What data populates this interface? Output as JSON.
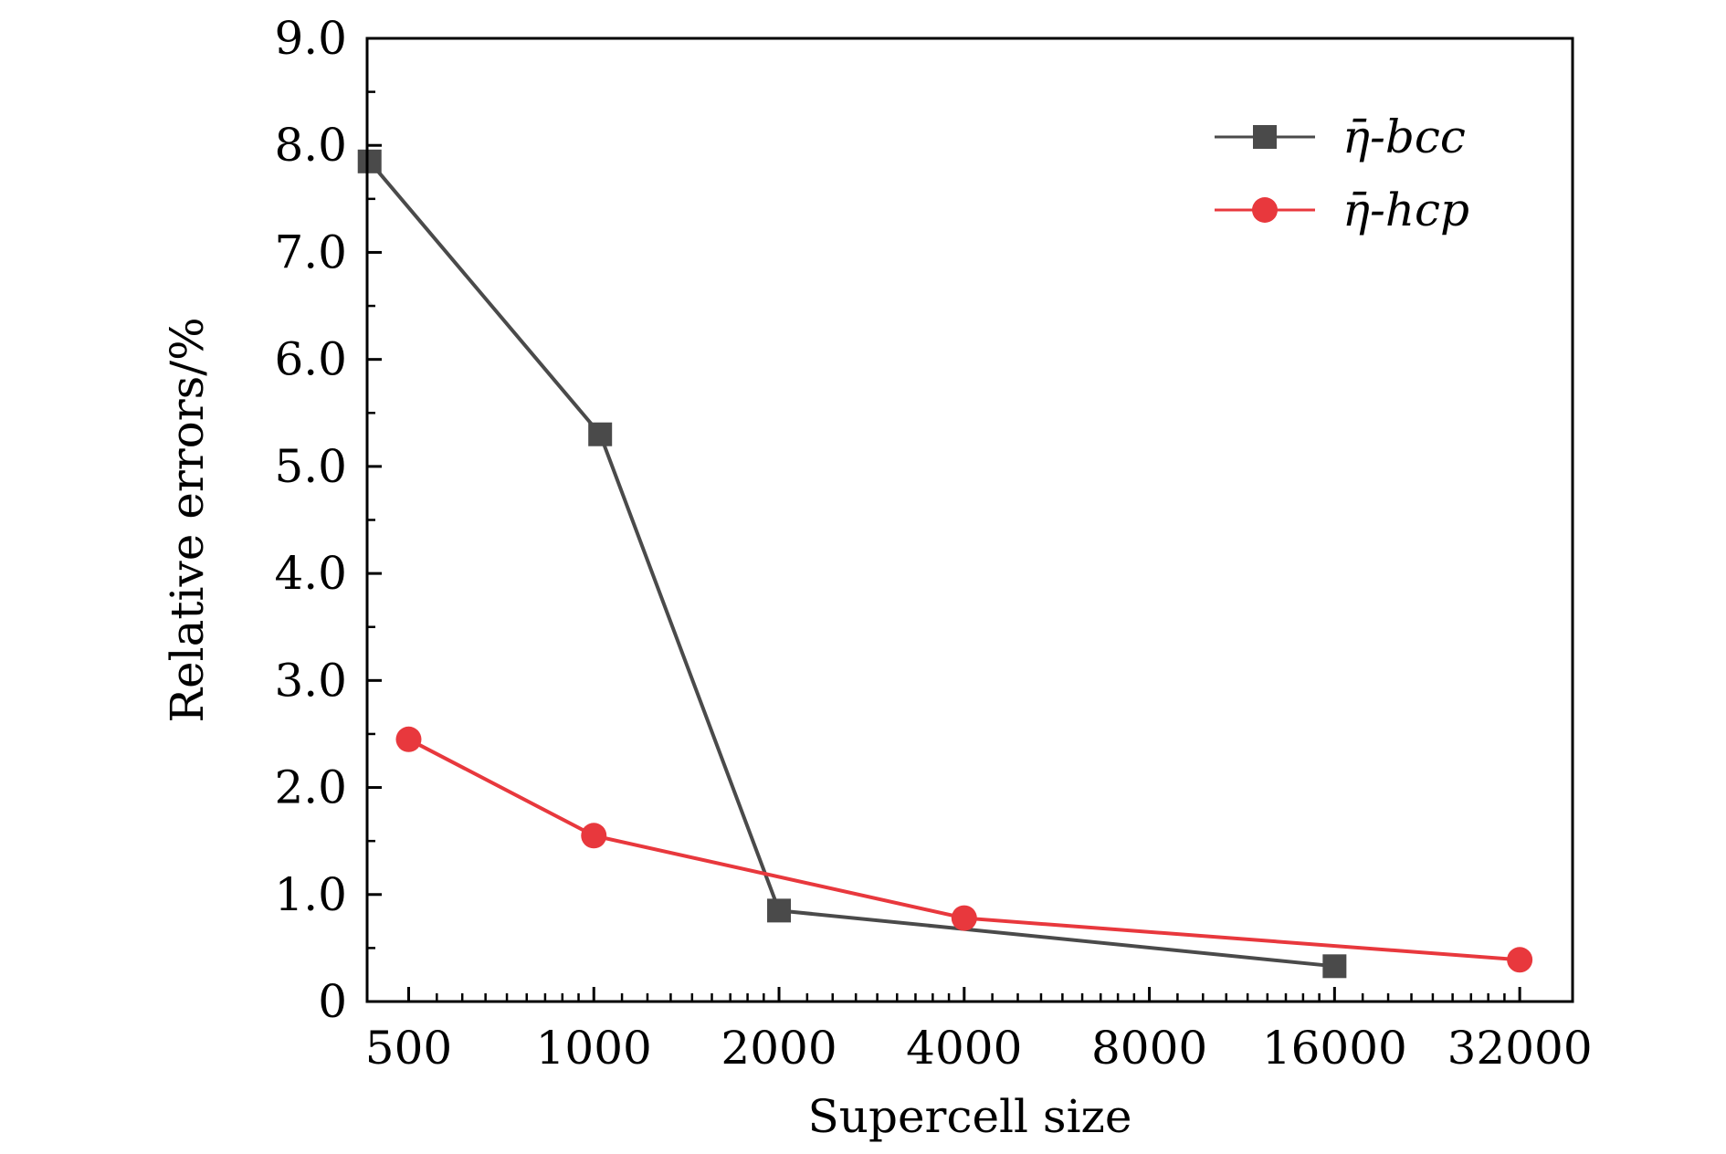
{
  "chart_data": {
    "type": "line",
    "title": "",
    "xlabel": "Supercell size",
    "ylabel": "Relative errors/%",
    "x_scale": "log2",
    "xlim": [
      428,
      39000
    ],
    "ylim": [
      0,
      9.0
    ],
    "x_ticks": [
      500,
      1000,
      2000,
      4000,
      8000,
      16000,
      32000
    ],
    "x_tick_labels": [
      "500",
      "1000",
      "2000",
      "4000",
      "8000",
      "16000",
      "32000"
    ],
    "y_ticks": [
      0,
      1.0,
      2.0,
      3.0,
      4.0,
      5.0,
      6.0,
      7.0,
      8.0,
      9.0
    ],
    "y_tick_labels": [
      "0",
      "1.0",
      "2.0",
      "3.0",
      "4.0",
      "5.0",
      "6.0",
      "7.0",
      "8.0",
      "9.0"
    ],
    "grid": false,
    "legend_position": "top-right",
    "series": [
      {
        "name": "η̄-bcc",
        "marker": "square",
        "color": "#4a4a4a",
        "x": [
          432,
          1024,
          2000,
          16000
        ],
        "y": [
          7.85,
          5.3,
          0.85,
          0.33
        ]
      },
      {
        "name": "η̄-hcp",
        "marker": "circle",
        "color": "#e8383d",
        "x": [
          500,
          1000,
          4000,
          32000
        ],
        "y": [
          2.45,
          1.55,
          0.78,
          0.39
        ]
      }
    ]
  }
}
